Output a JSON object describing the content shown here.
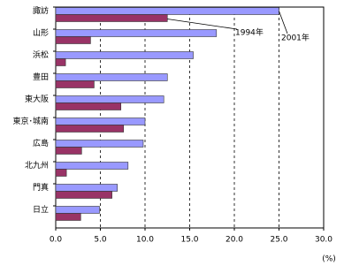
{
  "chart_data": {
    "type": "hbar",
    "categories": [
      "諏訪",
      "山形",
      "浜松",
      "豊田",
      "東大阪",
      "東京･城南",
      "広島",
      "北九州",
      "門真",
      "日立"
    ],
    "series": [
      {
        "name": "2001年",
        "color": "#9999ff",
        "values": [
          25.0,
          18.0,
          15.4,
          12.5,
          12.1,
          10.0,
          9.8,
          8.1,
          6.9,
          4.9
        ]
      },
      {
        "name": "1994年",
        "color": "#993366",
        "values": [
          12.5,
          3.9,
          1.1,
          4.3,
          7.3,
          7.6,
          2.9,
          1.2,
          6.3,
          2.8
        ]
      }
    ],
    "xlim": [
      0,
      30
    ],
    "xticks": [
      {
        "value": 0,
        "label": "0.0"
      },
      {
        "value": 5,
        "label": "5.0"
      },
      {
        "value": 10,
        "label": "10.0"
      },
      {
        "value": 15,
        "label": "15.0"
      },
      {
        "value": 20,
        "label": "20.0"
      },
      {
        "value": 25,
        "label": "25.0"
      },
      {
        "value": 30,
        "label": "30.0"
      }
    ],
    "x_unit": "(%)",
    "grid": true
  }
}
